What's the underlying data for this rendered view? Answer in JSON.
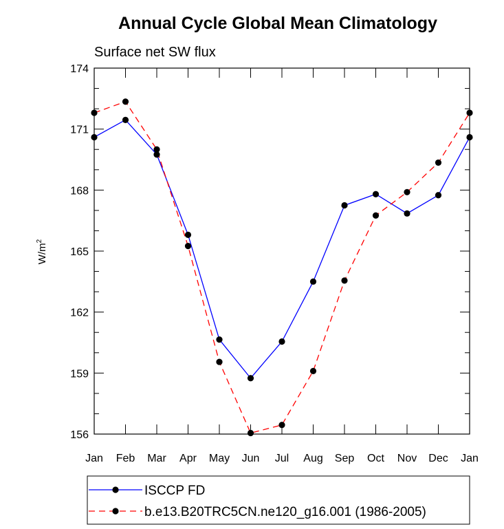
{
  "chart_data": {
    "type": "line",
    "title": "Annual Cycle Global Mean Climatology",
    "subtitle": "Surface net SW flux",
    "ylabel_base": "W/m",
    "ylabel_sup": "2",
    "xlabel": "",
    "categories": [
      "Jan",
      "Feb",
      "Mar",
      "Apr",
      "May",
      "Jun",
      "Jul",
      "Aug",
      "Sep",
      "Oct",
      "Nov",
      "Dec",
      "Jan"
    ],
    "ylim": [
      156,
      174
    ],
    "yticks": [
      156,
      159,
      162,
      165,
      168,
      171,
      174
    ],
    "series": [
      {
        "name": "ISCCP FD",
        "color": "#0000ff",
        "dash": "solid",
        "values": [
          170.6,
          171.45,
          169.75,
          165.8,
          160.65,
          158.75,
          160.55,
          163.5,
          167.25,
          167.8,
          166.85,
          167.75,
          170.6
        ]
      },
      {
        "name": "b.e13.B20TRC5CN.ne120_g16.001 (1986-2005)",
        "color": "#ff0000",
        "dash": "dashed",
        "values": [
          171.8,
          172.35,
          170.0,
          165.25,
          159.55,
          156.05,
          156.45,
          159.1,
          163.55,
          166.75,
          167.9,
          169.35,
          171.8
        ]
      }
    ]
  }
}
